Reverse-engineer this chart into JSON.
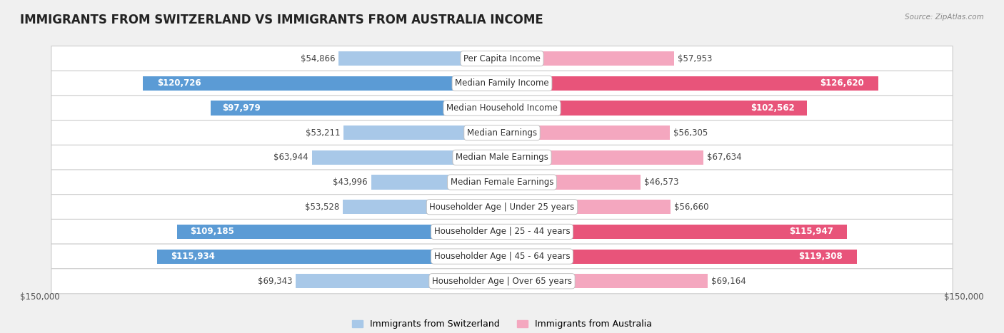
{
  "title": "IMMIGRANTS FROM SWITZERLAND VS IMMIGRANTS FROM AUSTRALIA INCOME",
  "source": "Source: ZipAtlas.com",
  "categories": [
    "Per Capita Income",
    "Median Family Income",
    "Median Household Income",
    "Median Earnings",
    "Median Male Earnings",
    "Median Female Earnings",
    "Householder Age | Under 25 years",
    "Householder Age | 25 - 44 years",
    "Householder Age | 45 - 64 years",
    "Householder Age | Over 65 years"
  ],
  "switzerland_values": [
    54866,
    120726,
    97979,
    53211,
    63944,
    43996,
    53528,
    109185,
    115934,
    69343
  ],
  "australia_values": [
    57953,
    126620,
    102562,
    56305,
    67634,
    46573,
    56660,
    115947,
    119308,
    69164
  ],
  "switzerland_labels": [
    "$54,866",
    "$120,726",
    "$97,979",
    "$53,211",
    "$63,944",
    "$43,996",
    "$53,528",
    "$109,185",
    "$115,934",
    "$69,343"
  ],
  "australia_labels": [
    "$57,953",
    "$126,620",
    "$102,562",
    "$56,305",
    "$67,634",
    "$46,573",
    "$56,660",
    "$115,947",
    "$119,308",
    "$69,164"
  ],
  "max_value": 150000,
  "switzerland_color_light": "#a8c8e8",
  "switzerland_color_dark": "#5b9bd5",
  "australia_color_light": "#f4a7bf",
  "australia_color_dark": "#e8547a",
  "background_color": "#f0f0f0",
  "row_bg_color": "#ffffff",
  "bar_height": 0.58,
  "label_fontsize": 8.5,
  "title_fontsize": 12,
  "legend_fontsize": 9,
  "axis_label": "$150,000",
  "threshold": 0.5
}
